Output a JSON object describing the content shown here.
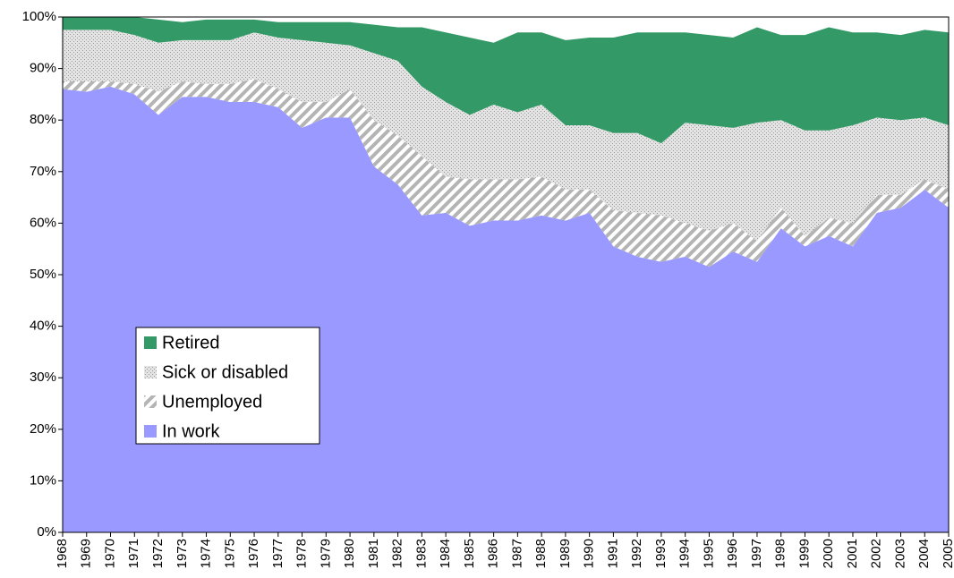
{
  "chart_data": {
    "type": "stacked-area",
    "categories": [
      "1968",
      "1969",
      "1970",
      "1971",
      "1972",
      "1973",
      "1974",
      "1975",
      "1976",
      "1977",
      "1978",
      "1979",
      "1980",
      "1981",
      "1982",
      "1983",
      "1984",
      "1985",
      "1986",
      "1987",
      "1988",
      "1989",
      "1990",
      "1991",
      "1992",
      "1993",
      "1994",
      "1995",
      "1996",
      "1997",
      "1998",
      "1999",
      "2000",
      "2001",
      "2002",
      "2003",
      "2004",
      "2005"
    ],
    "series": [
      {
        "name": "In work",
        "color": "#9999ff",
        "values": [
          86,
          85.5,
          86.5,
          85,
          81,
          84.5,
          84.5,
          83.5,
          83.5,
          82.5,
          78.5,
          80.5,
          80.5,
          71,
          67.5,
          61.5,
          62,
          59.5,
          60.5,
          60.5,
          61.5,
          60.5,
          62,
          55.5,
          53.5,
          52.5,
          53.5,
          51.5,
          54.5,
          52.5,
          59,
          55.5,
          57.5,
          55.5,
          62,
          63,
          66.5,
          63
        ]
      },
      {
        "name": "Unemployed",
        "color": "#b4b4b4",
        "values": [
          1.5,
          2,
          1,
          2,
          4.5,
          3,
          2.5,
          3.5,
          4.5,
          3.5,
          5,
          3,
          5.5,
          9,
          9.5,
          11.5,
          7,
          9,
          8,
          8,
          7.5,
          6,
          4.5,
          7,
          8.5,
          9,
          6.5,
          7,
          5.5,
          4,
          4,
          2,
          3.5,
          4.5,
          3.5,
          2.5,
          2,
          3.5
        ]
      },
      {
        "name": "Sick or disabled",
        "color": "#e3e3e3",
        "values": [
          10,
          10,
          10,
          9.5,
          9.5,
          8,
          8.5,
          8.5,
          9,
          10,
          12,
          11.5,
          8.5,
          13,
          14.5,
          13.5,
          14.5,
          12.5,
          14.5,
          13,
          14,
          12.5,
          12.5,
          15,
          15.5,
          14,
          19.5,
          20.5,
          18.5,
          23,
          17,
          20.5,
          17,
          19,
          15,
          14.5,
          12,
          12.5
        ]
      },
      {
        "name": "Retired",
        "color": "#339966",
        "values": [
          2.5,
          2.5,
          2.5,
          3.5,
          4.5,
          3.5,
          4,
          4,
          2.5,
          3,
          3.5,
          4,
          4.5,
          5.5,
          6.5,
          11.5,
          13.5,
          15,
          12,
          15.5,
          14,
          16.5,
          17,
          18.5,
          19.5,
          21.5,
          17.5,
          17.5,
          17.5,
          18.5,
          16.5,
          18.5,
          20,
          18,
          16.5,
          16.5,
          17,
          18
        ]
      }
    ],
    "ylim": [
      0,
      100
    ],
    "yticks": [
      {
        "value": 0,
        "label": "0%"
      },
      {
        "value": 10,
        "label": "10%"
      },
      {
        "value": 20,
        "label": "20%"
      },
      {
        "value": 30,
        "label": "30%"
      },
      {
        "value": 40,
        "label": "40%"
      },
      {
        "value": 50,
        "label": "50%"
      },
      {
        "value": 60,
        "label": "60%"
      },
      {
        "value": 70,
        "label": "70%"
      },
      {
        "value": 80,
        "label": "80%"
      },
      {
        "value": 90,
        "label": "90%"
      },
      {
        "value": 100,
        "label": "100%"
      }
    ],
    "legend": "left"
  }
}
